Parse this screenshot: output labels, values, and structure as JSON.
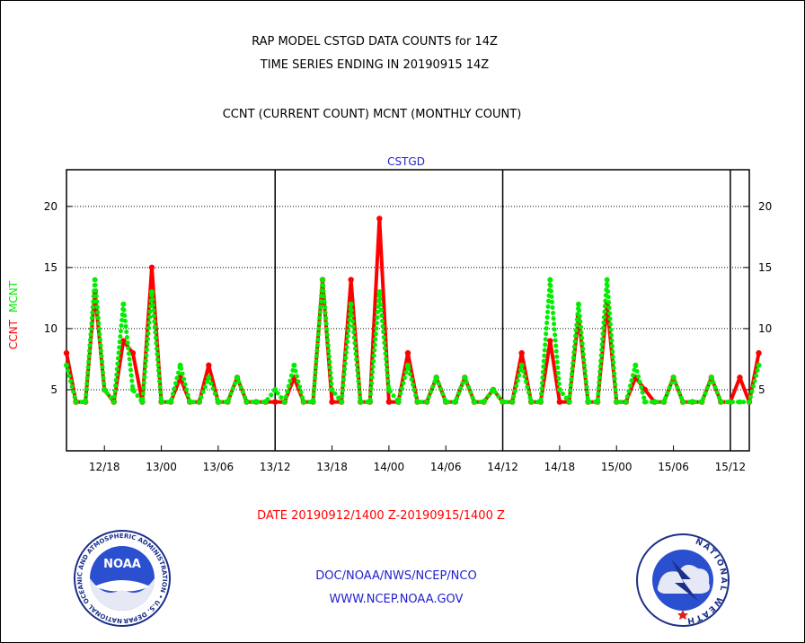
{
  "header": {
    "title_line1": "RAP MODEL CSTGD DATA COUNTS for 14Z",
    "title_line2": "TIME SERIES ENDING IN 20190915 14Z",
    "subtitle": "CCNT (CURRENT COUNT) MCNT (MONTHLY COUNT)"
  },
  "footer": {
    "date_range": "DATE 20190912/1400 Z-20190915/1400 Z",
    "org": "DOC/NOAA/NWS/NCEP/NCO",
    "url": "WWW.NCEP.NOAA.GOV"
  },
  "logos": {
    "left": {
      "name": "NOAA",
      "ring_text": "NATIONAL OCEANIC AND ATMOSPHERIC ADMINISTRATION • U.S. DEPARTMENT OF COMMERCE •"
    },
    "right": {
      "ring_text": "NATIONAL WEATHER SERVICE"
    }
  },
  "chart_data": {
    "type": "line",
    "title": "CSTGD",
    "ylabel_parts": [
      {
        "text": "CCNT",
        "color": "#ff0000"
      },
      {
        "text": "MCNT",
        "color": "#00ee00"
      }
    ],
    "ylim": [
      0,
      23
    ],
    "y_ticks": [
      5,
      10,
      15,
      20
    ],
    "x_start_hour": 14,
    "x_range_hours": [
      0,
      72
    ],
    "x_ticks": [
      {
        "hour": 4,
        "label": "12/18"
      },
      {
        "hour": 10,
        "label": "13/00"
      },
      {
        "hour": 16,
        "label": "13/06"
      },
      {
        "hour": 22,
        "label": "13/12"
      },
      {
        "hour": 28,
        "label": "13/18"
      },
      {
        "hour": 34,
        "label": "14/00"
      },
      {
        "hour": 40,
        "label": "14/06"
      },
      {
        "hour": 46,
        "label": "14/12"
      },
      {
        "hour": 52,
        "label": "14/18"
      },
      {
        "hour": 58,
        "label": "15/00"
      },
      {
        "hour": 64,
        "label": "15/06"
      },
      {
        "hour": 70,
        "label": "15/12"
      }
    ],
    "day_boundaries": [
      22,
      46,
      70
    ],
    "grid": "horizontal dotted",
    "colors": {
      "ccnt": "#ff0000",
      "mcnt": "#00ee00"
    },
    "series": [
      {
        "name": "CCNT",
        "values": [
          8,
          4,
          4,
          13,
          5,
          4,
          9,
          8,
          4,
          15,
          4,
          4,
          6,
          4,
          4,
          7,
          4,
          4,
          6,
          4,
          4,
          4,
          4,
          4,
          6,
          4,
          4,
          14,
          4,
          4,
          14,
          4,
          4,
          19,
          4,
          4,
          8,
          4,
          4,
          6,
          4,
          4,
          6,
          4,
          4,
          5,
          4,
          4,
          8,
          4,
          4,
          9,
          4,
          4,
          11,
          4,
          4,
          12,
          4,
          4,
          6,
          5,
          4,
          4,
          6,
          4,
          4,
          4,
          6,
          4,
          4,
          6,
          4,
          8
        ]
      },
      {
        "name": "MCNT",
        "values": [
          7,
          4,
          4,
          14,
          5,
          4,
          12,
          5,
          4,
          13,
          4,
          4,
          7,
          4,
          4,
          6,
          4,
          4,
          6,
          4,
          4,
          4,
          5,
          4,
          7,
          4,
          4,
          14,
          5,
          4,
          12,
          4,
          4,
          13,
          5,
          4,
          7,
          4,
          4,
          6,
          4,
          4,
          6,
          4,
          4,
          5,
          4,
          4,
          7,
          4,
          4,
          14,
          5,
          4,
          12,
          4,
          4,
          14,
          4,
          4,
          7,
          4,
          4,
          4,
          6,
          4,
          4,
          4,
          6,
          4,
          4,
          4,
          4,
          7
        ]
      }
    ]
  }
}
